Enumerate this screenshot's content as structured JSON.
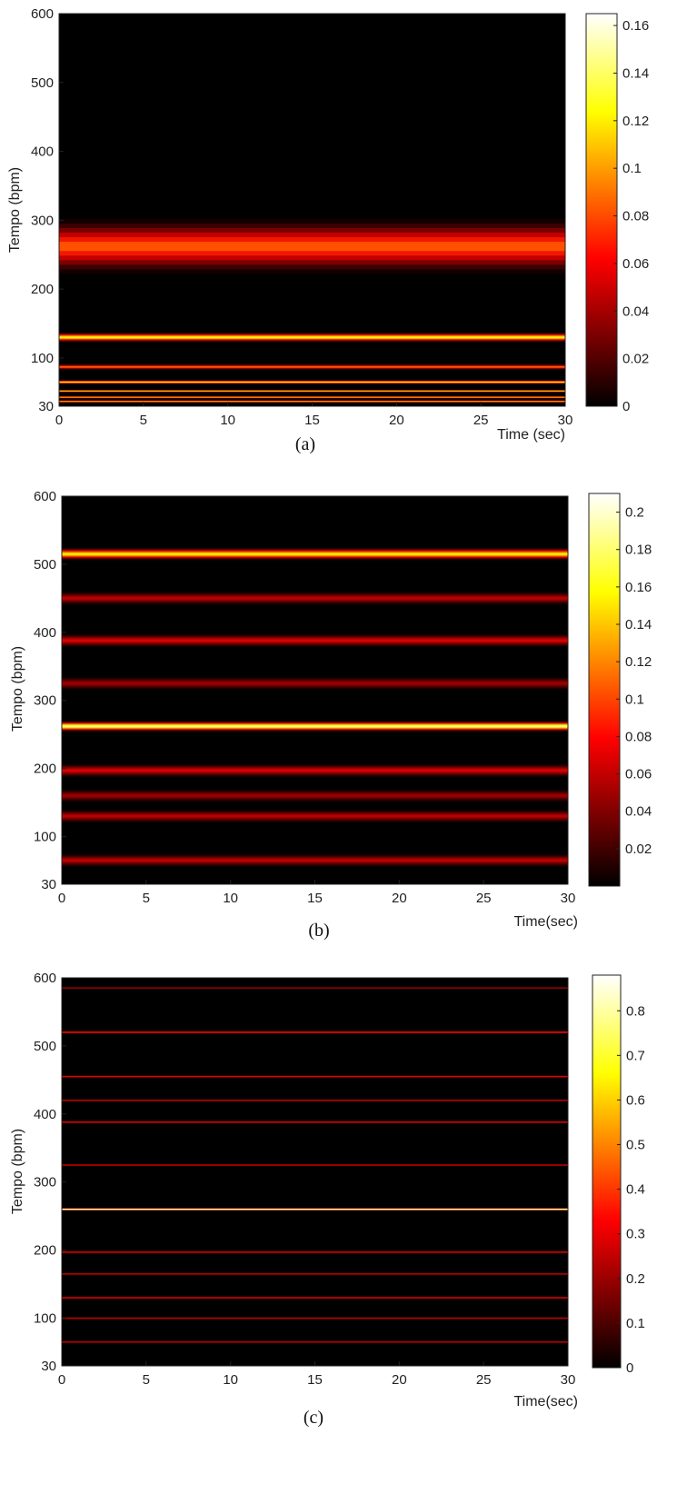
{
  "chart_data": [
    {
      "type": "heatmap",
      "caption": "(a)",
      "xlabel": "Time (sec)",
      "ylabel": "Tempo (bpm)",
      "xlim": [
        0,
        30
      ],
      "ylim": [
        30,
        600
      ],
      "xticks": [
        "0",
        "5",
        "10",
        "15",
        "20",
        "25",
        "30"
      ],
      "xtick_values": [
        0,
        5,
        10,
        15,
        20,
        25,
        30
      ],
      "yticks": [
        "30",
        "100",
        "200",
        "300",
        "400",
        "500",
        "600"
      ],
      "ytick_values": [
        30,
        100,
        200,
        300,
        400,
        500,
        600
      ],
      "colorbar": {
        "ticks": [
          "0",
          "0.02",
          "0.04",
          "0.06",
          "0.08",
          "0.1",
          "0.12",
          "0.14",
          "0.16"
        ],
        "tick_values": [
          0,
          0.02,
          0.04,
          0.06,
          0.08,
          0.1,
          0.12,
          0.14,
          0.16
        ],
        "range": [
          0,
          0.165
        ]
      },
      "colormap": "hot",
      "bands": [
        {
          "tempo": 262,
          "width": 40,
          "value": 0.085
        },
        {
          "tempo": 130,
          "width": 7,
          "value": 0.13
        },
        {
          "tempo": 87,
          "width": 4,
          "value": 0.09
        },
        {
          "tempo": 65,
          "width": 3,
          "value": 0.12
        },
        {
          "tempo": 52,
          "width": 2,
          "value": 0.11
        },
        {
          "tempo": 43,
          "width": 2,
          "value": 0.1
        },
        {
          "tempo": 37,
          "width": 2,
          "value": 0.1
        }
      ]
    },
    {
      "type": "heatmap",
      "caption": "(b)",
      "xlabel": "Time(sec)",
      "ylabel": "Tempo (bpm)",
      "xlim": [
        0,
        30
      ],
      "ylim": [
        30,
        600
      ],
      "xticks": [
        "0",
        "5",
        "10",
        "15",
        "20",
        "25",
        "30"
      ],
      "xtick_values": [
        0,
        5,
        10,
        15,
        20,
        25,
        30
      ],
      "yticks": [
        "30",
        "100",
        "200",
        "300",
        "400",
        "500",
        "600"
      ],
      "ytick_values": [
        30,
        100,
        200,
        300,
        400,
        500,
        600
      ],
      "colorbar": {
        "ticks": [
          "0.02",
          "0.04",
          "0.06",
          "0.08",
          "0.1",
          "0.12",
          "0.14",
          "0.16",
          "0.18",
          "0.2"
        ],
        "tick_values": [
          0.02,
          0.04,
          0.06,
          0.08,
          0.1,
          0.12,
          0.14,
          0.16,
          0.18,
          0.2
        ],
        "range": [
          0,
          0.21
        ]
      },
      "colormap": "hot",
      "bands": [
        {
          "tempo": 515,
          "width": 9,
          "value": 0.16
        },
        {
          "tempo": 262,
          "width": 8,
          "value": 0.19
        },
        {
          "tempo": 450,
          "width": 10,
          "value": 0.06
        },
        {
          "tempo": 388,
          "width": 10,
          "value": 0.07
        },
        {
          "tempo": 325,
          "width": 10,
          "value": 0.05
        },
        {
          "tempo": 197,
          "width": 10,
          "value": 0.07
        },
        {
          "tempo": 160,
          "width": 10,
          "value": 0.05
        },
        {
          "tempo": 130,
          "width": 10,
          "value": 0.06
        },
        {
          "tempo": 65,
          "width": 10,
          "value": 0.06
        }
      ]
    },
    {
      "type": "heatmap",
      "caption": "(c)",
      "xlabel": "Time(sec)",
      "ylabel": "Tempo (bpm)",
      "xlim": [
        0,
        30
      ],
      "ylim": [
        30,
        600
      ],
      "xticks": [
        "0",
        "5",
        "10",
        "15",
        "20",
        "25",
        "30"
      ],
      "xtick_values": [
        0,
        5,
        10,
        15,
        20,
        25,
        30
      ],
      "yticks": [
        "30",
        "100",
        "200",
        "300",
        "400",
        "500",
        "600"
      ],
      "ytick_values": [
        30,
        100,
        200,
        300,
        400,
        500,
        600
      ],
      "colorbar": {
        "ticks": [
          "0",
          "0.1",
          "0.2",
          "0.3",
          "0.4",
          "0.5",
          "0.6",
          "0.7",
          "0.8"
        ],
        "tick_values": [
          0,
          0.1,
          0.2,
          0.3,
          0.4,
          0.5,
          0.6,
          0.7,
          0.8
        ],
        "range": [
          0,
          0.88
        ]
      },
      "colormap": "hot",
      "bands": [
        {
          "tempo": 260,
          "width": 2,
          "value": 0.85
        },
        {
          "tempo": 520,
          "width": 2,
          "value": 0.35
        },
        {
          "tempo": 455,
          "width": 2,
          "value": 0.3
        },
        {
          "tempo": 420,
          "width": 2,
          "value": 0.25
        },
        {
          "tempo": 388,
          "width": 2,
          "value": 0.3
        },
        {
          "tempo": 325,
          "width": 2,
          "value": 0.25
        },
        {
          "tempo": 197,
          "width": 2,
          "value": 0.3
        },
        {
          "tempo": 165,
          "width": 2,
          "value": 0.25
        },
        {
          "tempo": 130,
          "width": 2,
          "value": 0.3
        },
        {
          "tempo": 100,
          "width": 2,
          "value": 0.25
        },
        {
          "tempo": 65,
          "width": 2,
          "value": 0.25
        },
        {
          "tempo": 585,
          "width": 2,
          "value": 0.2
        }
      ]
    }
  ]
}
